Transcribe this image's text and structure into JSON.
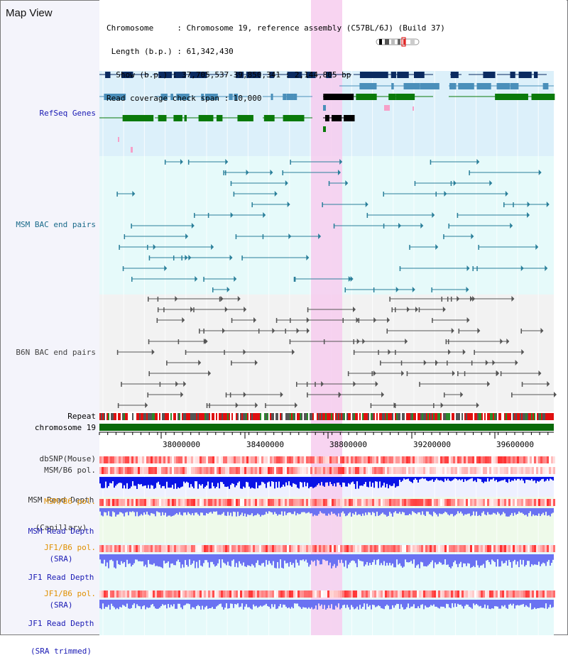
{
  "header": {
    "title": "Map View",
    "info_lines": [
      "Chromosome     : Chromosome 19, reference assembly (C57BL/6J) (Build 37)",
      " Length (b.p.) : 61,342,430",
      "  Show (b.p.) : 37,705,537-39,850,341 : 2,144,805 bp",
      "Read coverage check span : 10,000"
    ]
  },
  "tracks": {
    "refseq": "RefSeq Genes",
    "msm_bac": "MSM BAC end pairs",
    "b6n_bac": "B6N BAC end pairs",
    "repeat": "Repeat",
    "chromosome": "chromosome 19",
    "dbsnp": "dbSNP(Mouse)",
    "msm_b6_pol": "MSM/B6 pol.",
    "msm_depth_cap_1": "MSM Read Depth",
    "msm_depth_cap_2": "(Capillary)",
    "msm_b6_pol_2": "MSM/B6 pol.",
    "msm_depth_sra_1": "MSM Read Depth",
    "msm_depth_sra_2": "(SRA)",
    "jf1_b6_pol": "JF1/B6 pol.",
    "jf1_depth_sra_1": "JF1 Read Depth",
    "jf1_depth_sra_2": "(SRA)",
    "jf1_b6_pol_2": "JF1/B6 pol.",
    "jf1_depth_trim_1": "JF1 Read Depth",
    "jf1_depth_trim_2": "(SRA trimmed)"
  },
  "axis": {
    "ticks": [
      "38000000",
      "38400000",
      "38800000",
      "39200000",
      "39600000"
    ]
  },
  "colors": {
    "refseq_bg": "#dcf0fa",
    "bac_bg": "#e6fafa",
    "b6n_bg": "#f2f2f2",
    "highlight": "#f7cdee",
    "gene_dark": "#0a2a60",
    "gene_mid": "#4a8fba",
    "gene_green": "#0a7a0a",
    "msm_line": "#2a7f9a",
    "b6n_line": "#555555",
    "depth_cap": "#0a14e6",
    "depth_sra": "#6a72f2",
    "label_blue": "#1a1ab4",
    "label_orange": "#e09000",
    "label_teal": "#1a6a8a"
  }
}
